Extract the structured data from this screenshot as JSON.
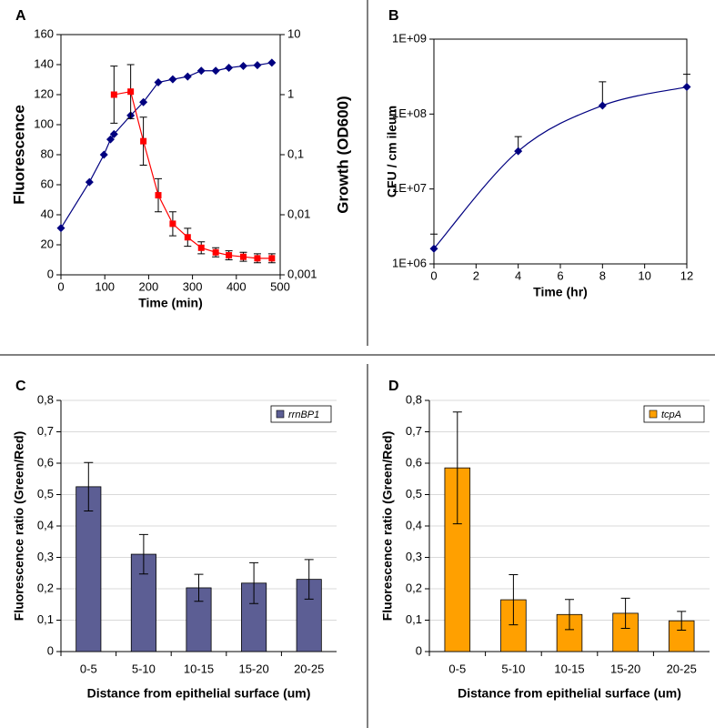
{
  "chart_data": [
    {
      "panel": "A",
      "type": "line",
      "xlabel": "Time (min)",
      "ylabel": "Fluorescence",
      "ylabel_color": "#ff0000",
      "y2label": "Growth (OD600)",
      "y2label_color": "#000080",
      "xlim": [
        0,
        500
      ],
      "xticks": [
        0,
        100,
        200,
        300,
        400,
        500
      ],
      "ylim": [
        0,
        160
      ],
      "yticks": [
        0,
        20,
        40,
        60,
        80,
        100,
        120,
        140,
        160
      ],
      "y2lim": [
        0.001,
        10
      ],
      "y2_log": true,
      "y2ticks": [
        {
          "value": 0.001,
          "label": "0,001"
        },
        {
          "value": 0.01,
          "label": "0,01"
        },
        {
          "value": 0.1,
          "label": "0,1"
        },
        1,
        10
      ],
      "series": [
        {
          "color": "#000080",
          "marker": "diamond",
          "axis": "y2",
          "x": [
            0,
            65,
            98,
            113,
            121,
            159,
            188,
            222,
            255,
            289,
            320,
            353,
            383,
            416,
            448,
            481
          ],
          "values": [
            0.006,
            0.035,
            0.1,
            0.18,
            0.22,
            0.45,
            0.75,
            1.6,
            1.8,
            2.0,
            2.5,
            2.5,
            2.8,
            3.0,
            3.1,
            3.4
          ]
        },
        {
          "color": "#ff0000",
          "marker": "square",
          "x": [
            121,
            159,
            188,
            222,
            255,
            289,
            320,
            353,
            383,
            416,
            448,
            481
          ],
          "values": [
            120,
            122,
            89,
            53,
            34,
            25,
            18,
            15,
            13,
            12,
            11,
            11
          ],
          "errors": [
            19,
            18,
            16,
            11,
            8,
            6,
            4,
            3,
            3,
            3,
            3,
            3
          ]
        }
      ]
    },
    {
      "panel": "B",
      "type": "line",
      "smooth": true,
      "xlabel": "Time (hr)",
      "ylabel": "CFU / cm ileum",
      "xlim": [
        0,
        12
      ],
      "xticks": [
        0,
        2,
        4,
        6,
        8,
        10,
        12
      ],
      "ylim": [
        1000000,
        1000000000
      ],
      "y_log": true,
      "yticks": [
        {
          "value": 1000000,
          "label": "1E+06"
        },
        {
          "value": 10000000,
          "label": "1E+07"
        },
        {
          "value": 100000000,
          "label": "1E+08"
        },
        {
          "value": 1000000000,
          "label": "1E+09"
        }
      ],
      "error_direction": "up",
      "series": [
        {
          "color": "#000080",
          "marker": "diamond",
          "x": [
            0,
            4,
            8,
            12
          ],
          "values": [
            1600000,
            32000000,
            130000000,
            230000000
          ],
          "errors": [
            900000,
            18000000,
            140000000,
            110000000
          ]
        }
      ]
    },
    {
      "panel": "C",
      "type": "bar",
      "xlabel": "Distance from epithelial surface (um)",
      "ylabel": "Fluorescence ratio (Green/Red)",
      "categories": [
        "0-5",
        "5-10",
        "10-15",
        "15-20",
        "20-25"
      ],
      "ylim": [
        0,
        0.8
      ],
      "grid": true,
      "legend": "upper right",
      "yticks": [
        0,
        {
          "value": 0.1,
          "label": "0,1"
        },
        {
          "value": 0.2,
          "label": "0,2"
        },
        {
          "value": 0.3,
          "label": "0,3"
        },
        {
          "value": 0.4,
          "label": "0,4"
        },
        {
          "value": 0.5,
          "label": "0,5"
        },
        {
          "value": 0.6,
          "label": "0,6"
        },
        {
          "value": 0.7,
          "label": "0,7"
        },
        {
          "value": 0.8,
          "label": "0,8"
        }
      ],
      "series": [
        {
          "name": "rrnBP1",
          "color": "#5c5e94",
          "values": [
            0.525,
            0.31,
            0.203,
            0.218,
            0.23
          ],
          "errors": [
            0.077,
            0.063,
            0.043,
            0.065,
            0.063
          ]
        }
      ]
    },
    {
      "panel": "D",
      "type": "bar",
      "xlabel": "Distance from epithelial surface (um)",
      "ylabel": "Fluorescence ratio (Green/Red)",
      "categories": [
        "0-5",
        "5-10",
        "10-15",
        "15-20",
        "20-25"
      ],
      "ylim": [
        0,
        0.8
      ],
      "grid": true,
      "legend": "upper right",
      "yticks": [
        0,
        {
          "value": 0.1,
          "label": "0,1"
        },
        {
          "value": 0.2,
          "label": "0,2"
        },
        {
          "value": 0.3,
          "label": "0,3"
        },
        {
          "value": 0.4,
          "label": "0,4"
        },
        {
          "value": 0.5,
          "label": "0,5"
        },
        {
          "value": 0.6,
          "label": "0,6"
        },
        {
          "value": 0.7,
          "label": "0,7"
        },
        {
          "value": 0.8,
          "label": "0,8"
        }
      ],
      "series": [
        {
          "name": "tcpA",
          "color": "#ffa000",
          "values": [
            0.585,
            0.165,
            0.118,
            0.122,
            0.098
          ],
          "errors": [
            0.178,
            0.08,
            0.048,
            0.048,
            0.03
          ]
        }
      ]
    }
  ]
}
